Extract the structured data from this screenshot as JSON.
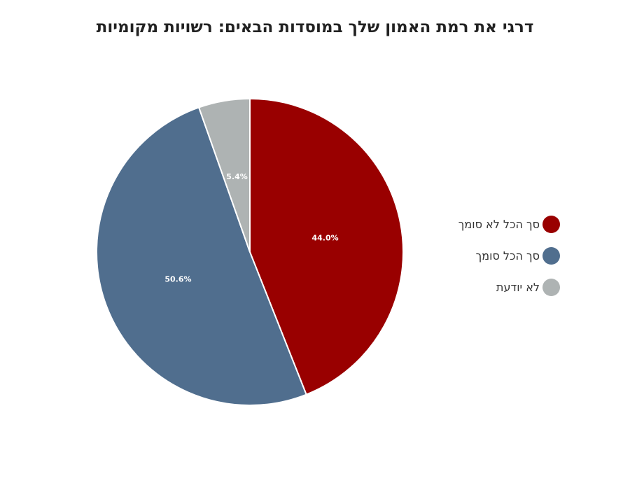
{
  "chart_data": {
    "type": "pie",
    "title": "דרגי את רמת האמון שלך במוסדות הבאים: רשויות מקומיות",
    "slices": [
      {
        "name": "סך הכל לא סומך",
        "value": 44.0,
        "label": "44.0%",
        "color": "#990000"
      },
      {
        "name": "סך הכל סומך",
        "value": 50.6,
        "label": "50.6%",
        "color": "#506e8e"
      },
      {
        "name": "לא יודעת",
        "value": 5.4,
        "label": "5.4%",
        "color": "#aeb3b3"
      }
    ],
    "legend_position": "right"
  }
}
